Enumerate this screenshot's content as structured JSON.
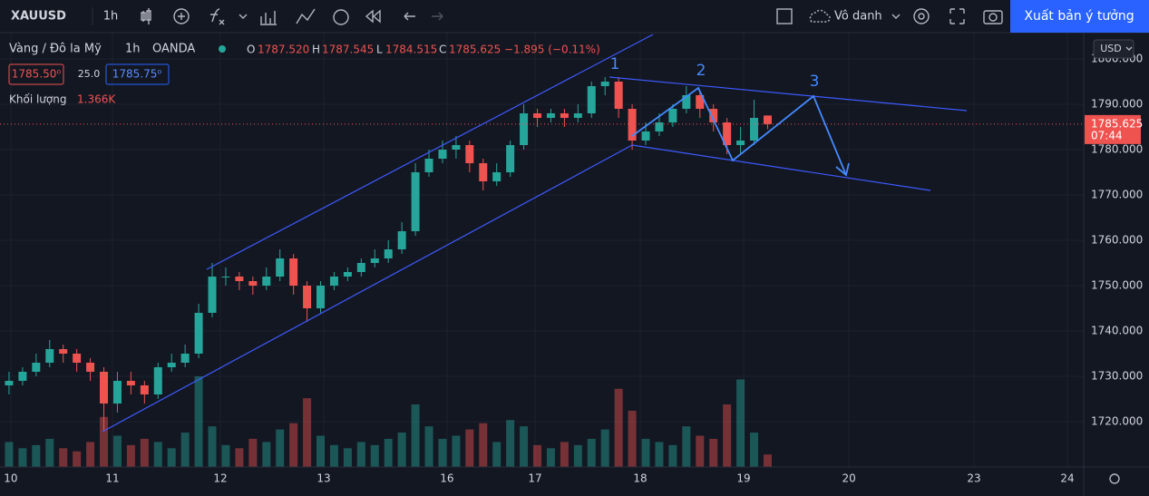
{
  "toolbar": {
    "symbol": "XAUUSD",
    "interval": "1h",
    "layout_name": "Vô danh",
    "publish_button": "Xuất bản ý tưởng"
  },
  "legend": {
    "name": "Vàng / Đô la Mỹ",
    "interval": "1h",
    "source": "OANDA",
    "o_label": "O",
    "open": "1787.520",
    "h_label": "H",
    "high": "1787.545",
    "l_label": "L",
    "low": "1784.515",
    "c_label": "C",
    "close": "1785.625",
    "change": "−1.895 (−0.11%)",
    "bid": "1785.50⁰",
    "spread": "25.0",
    "ask": "1785.75⁰",
    "volume_label": "Khối lượng",
    "volume_value": "1.366K"
  },
  "chart_data": {
    "type": "candlestick",
    "x": [
      2,
      5,
      8,
      11,
      14,
      17,
      20,
      23,
      26,
      29,
      32,
      35,
      38,
      41,
      44,
      47,
      50,
      53,
      56,
      59,
      62,
      65,
      68,
      71,
      74,
      77,
      80,
      83,
      86,
      89,
      92,
      95,
      98,
      101,
      104,
      107,
      110,
      113,
      116,
      119,
      122,
      125,
      128,
      131,
      134,
      137,
      140,
      143,
      146,
      149,
      152,
      155,
      158,
      161,
      164,
      167,
      170
    ],
    "open": [
      1728,
      1729,
      1731,
      1733,
      1736,
      1735,
      1733,
      1731,
      1724,
      1729,
      1728,
      1726,
      1732,
      1733,
      1735,
      1744,
      1752,
      1752,
      1751,
      1750,
      1752,
      1756,
      1750,
      1745,
      1750,
      1752,
      1753,
      1755,
      1756,
      1758,
      1762,
      1775,
      1778,
      1780,
      1781,
      1777,
      1773,
      1775,
      1781,
      1788,
      1787,
      1788,
      1787,
      1788,
      1794,
      1795,
      1789,
      1782,
      1784,
      1786,
      1789,
      1792,
      1789,
      1786,
      1781,
      1782,
      1787.52
    ],
    "high": [
      1731,
      1732,
      1735,
      1738,
      1737,
      1736,
      1734,
      1732,
      1731,
      1731,
      1729,
      1733,
      1735,
      1737,
      1746,
      1755,
      1754,
      1753,
      1752,
      1754,
      1758,
      1757,
      1751,
      1751,
      1753,
      1754,
      1756,
      1758,
      1760,
      1764,
      1777,
      1780,
      1782,
      1783,
      1782,
      1778,
      1777,
      1782,
      1790,
      1789,
      1789,
      1789,
      1790,
      1795,
      1796,
      1796,
      1790,
      1786,
      1788,
      1790,
      1794,
      1793,
      1790,
      1787,
      1785,
      1791,
      1787.545
    ],
    "low": [
      1726,
      1728,
      1730,
      1732,
      1733,
      1731,
      1729,
      1718,
      1722,
      1726,
      1724,
      1725,
      1731,
      1732,
      1734,
      1743,
      1750,
      1749,
      1748,
      1749,
      1751,
      1748,
      1742,
      1744,
      1749,
      1751,
      1752,
      1754,
      1755,
      1757,
      1761,
      1774,
      1777,
      1778,
      1775,
      1771,
      1772,
      1774,
      1780,
      1785,
      1786,
      1785,
      1786,
      1787,
      1792,
      1787,
      1780,
      1781,
      1783,
      1785,
      1788,
      1787,
      1784,
      1779,
      1779,
      1781,
      1784.515
    ],
    "close": [
      1729,
      1731,
      1733,
      1736,
      1735,
      1733,
      1731,
      1724,
      1729,
      1728,
      1726,
      1732,
      1733,
      1735,
      1744,
      1752,
      1752,
      1751,
      1750,
      1752,
      1756,
      1750,
      1745,
      1750,
      1752,
      1753,
      1755,
      1756,
      1758,
      1762,
      1775,
      1778,
      1780,
      1781,
      1777,
      1773,
      1775,
      1781,
      1788,
      1787,
      1788,
      1787,
      1788,
      1794,
      1795,
      1789,
      1782,
      1784,
      1786,
      1789,
      1792,
      1789,
      1786,
      1781,
      1782,
      1787,
      1785.625
    ],
    "volume": [
      0.8,
      0.6,
      0.7,
      0.9,
      0.6,
      0.5,
      0.8,
      1.6,
      1.0,
      0.7,
      0.9,
      0.8,
      0.6,
      1.1,
      2.9,
      1.3,
      0.7,
      0.6,
      0.9,
      0.8,
      1.2,
      1.4,
      2.2,
      1.0,
      0.7,
      0.6,
      0.8,
      0.7,
      0.9,
      1.1,
      2.0,
      1.3,
      0.9,
      1.0,
      1.2,
      1.4,
      0.8,
      1.5,
      1.3,
      0.7,
      0.6,
      0.8,
      0.7,
      0.9,
      1.2,
      2.5,
      1.8,
      0.9,
      0.8,
      0.7,
      1.3,
      1.0,
      0.9,
      2.0,
      2.8,
      1.1,
      0.4
    ],
    "up_color": "#26a69a",
    "down_color": "#ef5350",
    "xlim": [
      0,
      240
    ],
    "xticks": [
      {
        "value": 2.4,
        "label": "10"
      },
      {
        "value": 24.9,
        "label": "11"
      },
      {
        "value": 48.8,
        "label": "12"
      },
      {
        "value": 71.7,
        "label": "13"
      },
      {
        "value": 99,
        "label": "16"
      },
      {
        "value": 118.5,
        "label": "17"
      },
      {
        "value": 141.8,
        "label": "18"
      },
      {
        "value": 164.7,
        "label": "19"
      },
      {
        "value": 188,
        "label": "20"
      },
      {
        "value": 215.7,
        "label": "23"
      },
      {
        "value": 236.4,
        "label": "24"
      }
    ],
    "ylim": [
      1710,
      1805
    ],
    "yticks": [
      {
        "value": 1720,
        "label": "1720.000"
      },
      {
        "value": 1730,
        "label": "1730.000"
      },
      {
        "value": 1740,
        "label": "1740.000"
      },
      {
        "value": 1750,
        "label": "1750.000"
      },
      {
        "value": 1760,
        "label": "1760.000"
      },
      {
        "value": 1770,
        "label": "1770.000"
      },
      {
        "value": 1780,
        "label": "1780.000"
      },
      {
        "value": 1790,
        "label": "1790.000"
      },
      {
        "value": 1800,
        "label": "1800.000"
      }
    ],
    "grid": true,
    "currency": "USD",
    "last_price": 1785.625,
    "countdown": "07:44",
    "annotations": [
      "1",
      "2",
      "3"
    ]
  }
}
